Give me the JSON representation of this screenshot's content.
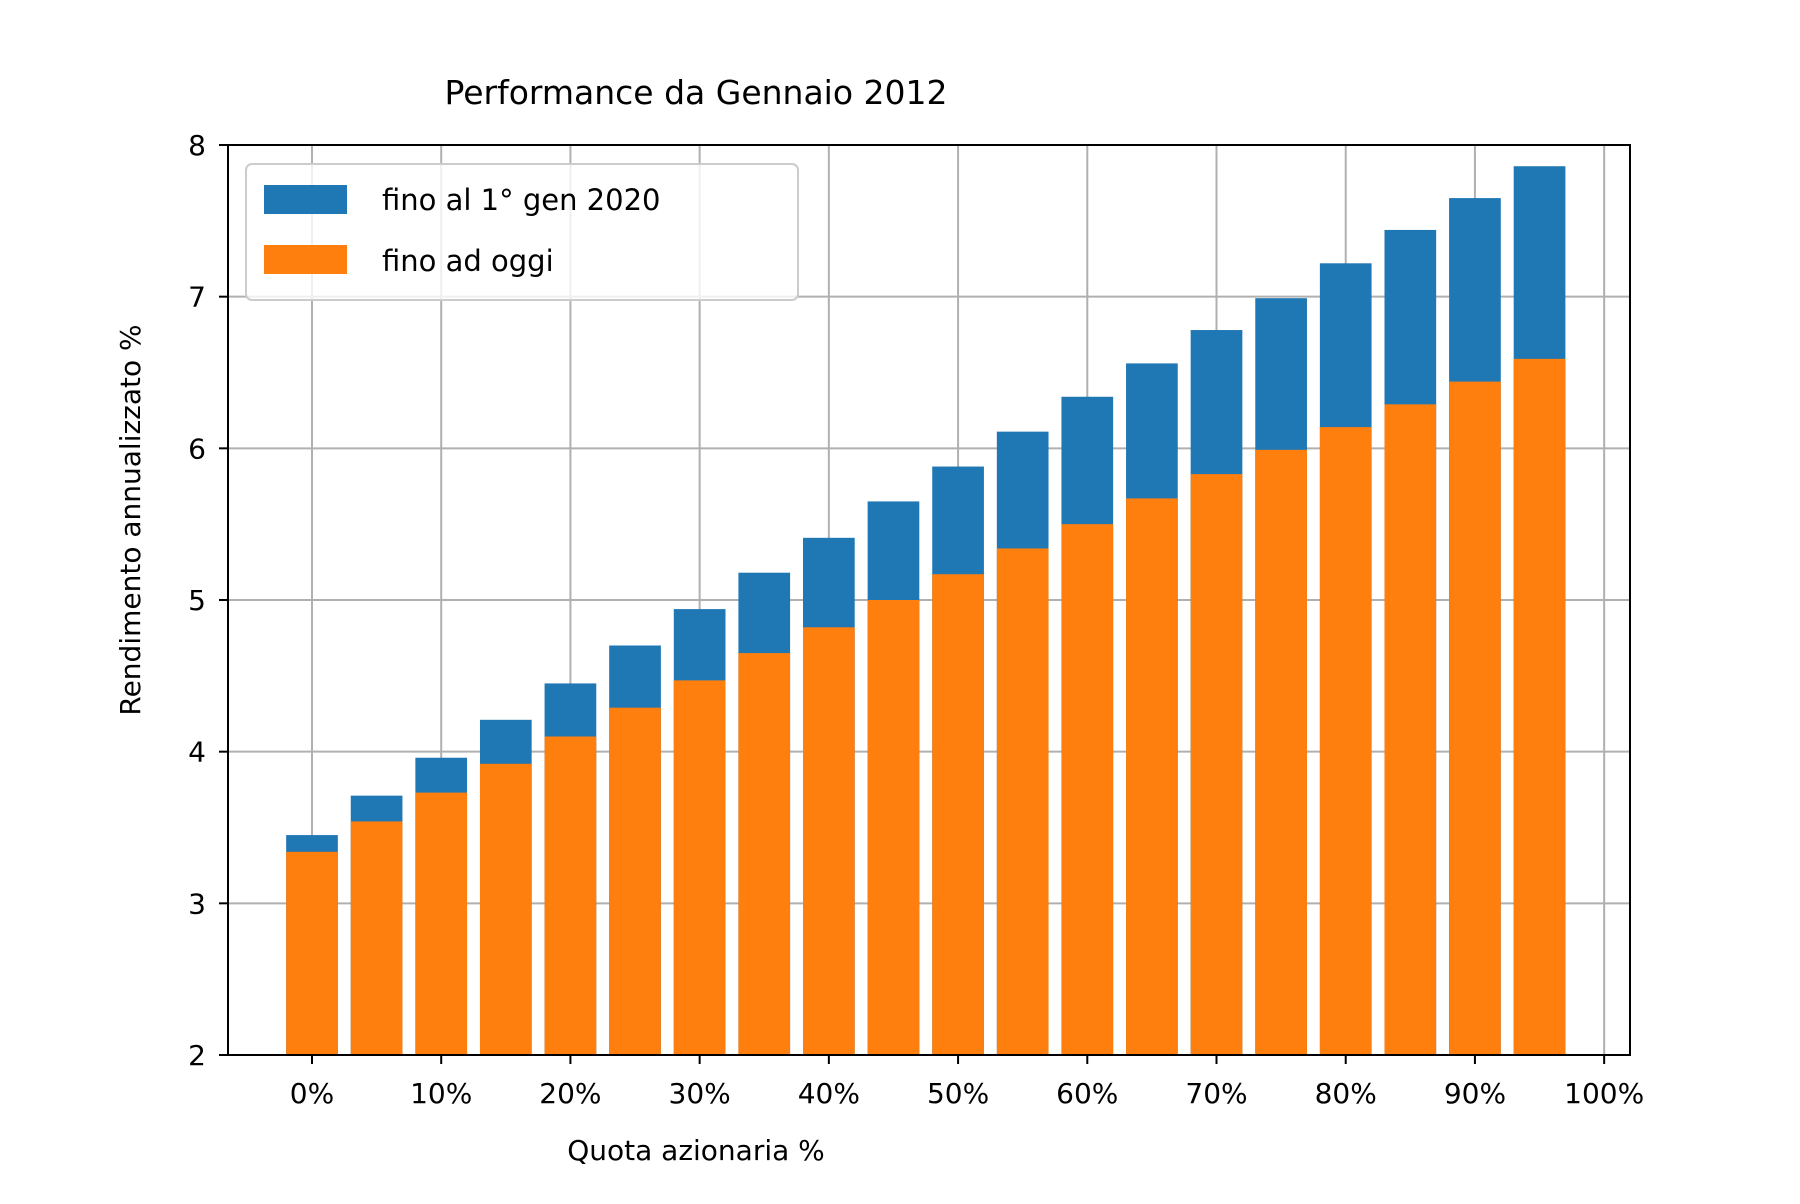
{
  "chart_data": {
    "type": "bar",
    "title": "Performance da Gennaio 2012",
    "xlabel": "Quota azionaria %",
    "ylabel": "Rendimento annualizzato %",
    "xlim": [
      -6.5,
      102
    ],
    "ylim": [
      2,
      8
    ],
    "grid": true,
    "legend_position": "upper-left",
    "x": [
      0,
      5,
      10,
      15,
      20,
      25,
      30,
      35,
      40,
      45,
      50,
      55,
      60,
      65,
      70,
      75,
      80,
      85,
      90,
      95
    ],
    "bar_width": 4,
    "x_ticks": [
      0,
      10,
      20,
      30,
      40,
      50,
      60,
      70,
      80,
      90,
      100
    ],
    "x_tick_labels": [
      "0%",
      "10%",
      "20%",
      "30%",
      "40%",
      "50%",
      "60%",
      "70%",
      "80%",
      "90%",
      "100%"
    ],
    "y_ticks": [
      2,
      3,
      4,
      5,
      6,
      7,
      8
    ],
    "y_tick_labels": [
      "2",
      "3",
      "4",
      "5",
      "6",
      "7",
      "8"
    ],
    "series": [
      {
        "name": "fino al 1° gen 2020",
        "color": "#1f77b4",
        "values": [
          3.45,
          3.71,
          3.96,
          4.21,
          4.45,
          4.7,
          4.94,
          5.18,
          5.41,
          5.65,
          5.88,
          6.11,
          6.34,
          6.56,
          6.78,
          6.99,
          7.22,
          7.44,
          7.65,
          7.86
        ]
      },
      {
        "name": "fino ad oggi",
        "color": "#ff7f0e",
        "values": [
          3.34,
          3.54,
          3.73,
          3.92,
          4.1,
          4.29,
          4.47,
          4.65,
          4.82,
          5.0,
          5.17,
          5.34,
          5.5,
          5.67,
          5.83,
          5.99,
          6.14,
          6.29,
          6.44,
          6.59
        ]
      }
    ]
  }
}
